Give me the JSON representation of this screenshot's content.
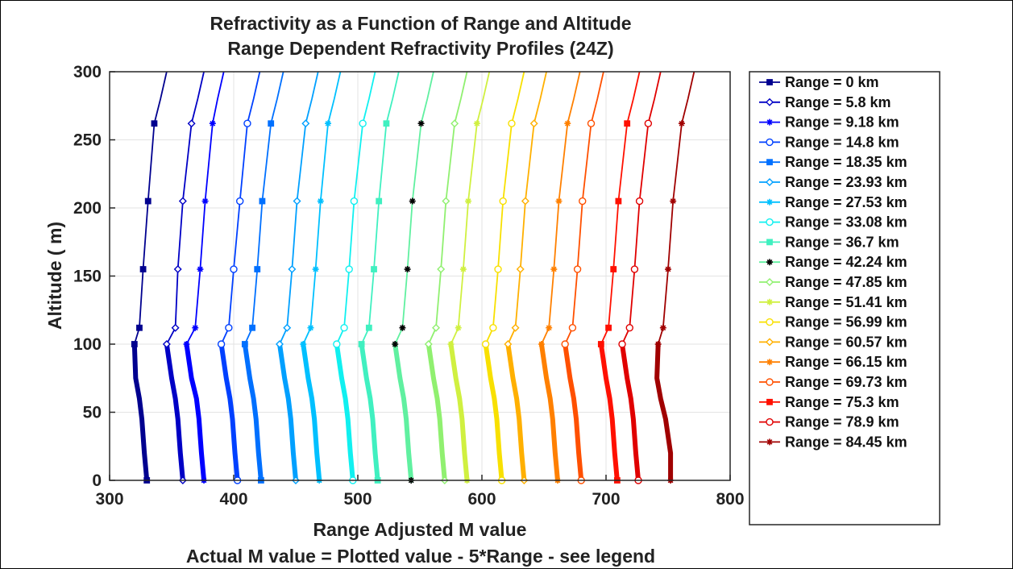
{
  "chart_data": {
    "type": "line",
    "title": "Refractivity as a Function of Range and Altitude",
    "subtitle": "Range Dependent Refractivity Profiles (24Z)",
    "xlabel": "Range Adjusted M value",
    "footnote": "Actual M value = Plotted value - 5*Range - see legend",
    "ylabel": "Altitude ( m)",
    "xlim": [
      300,
      800
    ],
    "ylim": [
      0,
      300
    ],
    "xticks": [
      "300",
      "400",
      "500",
      "600",
      "700",
      "800"
    ],
    "yticks": [
      "0",
      "50",
      "100",
      "150",
      "200",
      "250",
      "300"
    ],
    "grid": true,
    "legend_position": "outside-right",
    "marker_altitudes": [
      0,
      100,
      112,
      155,
      205,
      262
    ],
    "series": [
      {
        "name": "Range = 0 km",
        "color": "#00008f",
        "marker": "square",
        "x": [
          330,
          328,
          326,
          324,
          321,
          320,
          324,
          327,
          331,
          336,
          341,
          346
        ],
        "y": [
          0,
          20,
          45,
          60,
          75,
          100,
          112,
          155,
          205,
          262,
          280,
          300
        ]
      },
      {
        "name": "Range = 5.8 km",
        "color": "#0000c5",
        "marker": "diamond",
        "x": [
          359,
          357,
          355,
          353,
          350,
          346,
          353,
          355,
          359,
          366,
          371,
          376
        ],
        "y": [
          0,
          20,
          45,
          60,
          75,
          100,
          112,
          155,
          205,
          262,
          280,
          300
        ]
      },
      {
        "name": "Range = 9.18 km",
        "color": "#0000ff",
        "marker": "star",
        "x": [
          376,
          374,
          372,
          370,
          366,
          362,
          369,
          373,
          377,
          383,
          387,
          392
        ],
        "y": [
          0,
          20,
          45,
          60,
          75,
          100,
          112,
          155,
          205,
          262,
          280,
          300
        ]
      },
      {
        "name": "Range = 14.8 km",
        "color": "#0040ff",
        "marker": "circle",
        "x": [
          403,
          401,
          399,
          397,
          394,
          390,
          396,
          400,
          405,
          411,
          416,
          421
        ],
        "y": [
          0,
          20,
          45,
          60,
          75,
          100,
          112,
          155,
          205,
          262,
          280,
          300
        ]
      },
      {
        "name": "Range = 18.35 km",
        "color": "#0070ff",
        "marker": "square",
        "x": [
          422,
          420,
          418,
          416,
          413,
          409,
          415,
          419,
          423,
          430,
          435,
          440
        ],
        "y": [
          0,
          20,
          45,
          60,
          75,
          100,
          112,
          155,
          205,
          262,
          280,
          300
        ]
      },
      {
        "name": "Range = 23.93 km",
        "color": "#00a0ff",
        "marker": "diamond",
        "x": [
          450,
          448,
          446,
          444,
          441,
          437,
          443,
          447,
          451,
          458,
          463,
          468
        ],
        "y": [
          0,
          20,
          45,
          60,
          75,
          100,
          112,
          155,
          205,
          262,
          280,
          300
        ]
      },
      {
        "name": "Range = 27.53 km",
        "color": "#00c0ff",
        "marker": "star",
        "x": [
          469,
          467,
          465,
          463,
          460,
          456,
          462,
          466,
          470,
          476,
          481,
          486
        ],
        "y": [
          0,
          20,
          45,
          60,
          75,
          100,
          112,
          155,
          205,
          262,
          280,
          300
        ]
      },
      {
        "name": "Range = 33.08 km",
        "color": "#10f0f0",
        "marker": "circle",
        "x": [
          496,
          494,
          492,
          490,
          487,
          483,
          489,
          493,
          497,
          504,
          509,
          514
        ],
        "y": [
          0,
          20,
          45,
          60,
          75,
          100,
          112,
          155,
          205,
          262,
          280,
          300
        ]
      },
      {
        "name": "Range = 36.7 km",
        "color": "#40f0c0",
        "marker": "square",
        "x": [
          516,
          514,
          512,
          510,
          507,
          503,
          509,
          513,
          517,
          523,
          528,
          533
        ],
        "y": [
          0,
          20,
          45,
          60,
          75,
          100,
          112,
          155,
          205,
          262,
          280,
          300
        ]
      },
      {
        "name": "Range = 42.24 km",
        "color": "#000000",
        "line_color": "#60f0a0",
        "marker": "star",
        "x": [
          543,
          541,
          539,
          537,
          534,
          530,
          536,
          540,
          544,
          551,
          556,
          561
        ],
        "y": [
          0,
          20,
          45,
          60,
          75,
          100,
          112,
          155,
          205,
          262,
          280,
          300
        ]
      },
      {
        "name": "Range = 47.85 km",
        "color": "#90f070",
        "marker": "diamond",
        "x": [
          570,
          568,
          566,
          564,
          561,
          557,
          563,
          567,
          571,
          578,
          583,
          588
        ],
        "y": [
          0,
          20,
          45,
          60,
          75,
          100,
          112,
          155,
          205,
          262,
          280,
          300
        ]
      },
      {
        "name": "Range = 51.41 km",
        "color": "#d0f040",
        "marker": "star",
        "x": [
          588,
          586,
          584,
          582,
          579,
          575,
          581,
          585,
          589,
          596,
          601,
          606
        ],
        "y": [
          0,
          20,
          45,
          60,
          75,
          100,
          112,
          155,
          205,
          262,
          280,
          300
        ]
      },
      {
        "name": "Range = 56.99 km",
        "color": "#f8e000",
        "marker": "circle",
        "x": [
          616,
          614,
          612,
          610,
          607,
          603,
          609,
          613,
          617,
          624,
          629,
          634
        ],
        "y": [
          0,
          20,
          45,
          60,
          75,
          100,
          112,
          155,
          205,
          262,
          280,
          300
        ]
      },
      {
        "name": "Range = 60.57 km",
        "color": "#ffb000",
        "marker": "diamond",
        "x": [
          634,
          632,
          630,
          628,
          625,
          621,
          627,
          631,
          635,
          642,
          647,
          652
        ],
        "y": [
          0,
          20,
          45,
          60,
          75,
          100,
          112,
          155,
          205,
          262,
          280,
          300
        ]
      },
      {
        "name": "Range = 66.15 km",
        "color": "#ff8000",
        "marker": "star",
        "x": [
          661,
          659,
          657,
          655,
          652,
          648,
          654,
          658,
          662,
          669,
          674,
          679
        ],
        "y": [
          0,
          20,
          45,
          60,
          75,
          100,
          112,
          155,
          205,
          262,
          280,
          300
        ]
      },
      {
        "name": "Range = 69.73 km",
        "color": "#ff5000",
        "marker": "circle",
        "x": [
          680,
          678,
          676,
          674,
          671,
          667,
          673,
          677,
          681,
          688,
          693,
          698
        ],
        "y": [
          0,
          20,
          45,
          60,
          75,
          100,
          112,
          155,
          205,
          262,
          280,
          300
        ]
      },
      {
        "name": "Range = 75.3 km",
        "color": "#ff1000",
        "marker": "square",
        "x": [
          709,
          707,
          705,
          703,
          700,
          696,
          702,
          706,
          710,
          717,
          722,
          727
        ],
        "y": [
          0,
          20,
          45,
          60,
          75,
          100,
          112,
          155,
          205,
          262,
          280,
          300
        ]
      },
      {
        "name": "Range = 78.9 km",
        "color": "#e00000",
        "marker": "circle",
        "x": [
          726,
          724,
          722,
          720,
          717,
          713,
          719,
          723,
          727,
          734,
          739,
          744
        ],
        "y": [
          0,
          20,
          45,
          60,
          75,
          100,
          112,
          155,
          205,
          262,
          280,
          300
        ]
      },
      {
        "name": "Range = 84.45 km",
        "color": "#a00000",
        "marker": "star",
        "x": [
          752,
          752,
          748,
          744,
          741,
          742,
          746,
          750,
          754,
          761,
          766,
          771
        ],
        "y": [
          0,
          20,
          45,
          60,
          75,
          100,
          112,
          155,
          205,
          262,
          280,
          300
        ]
      }
    ]
  }
}
